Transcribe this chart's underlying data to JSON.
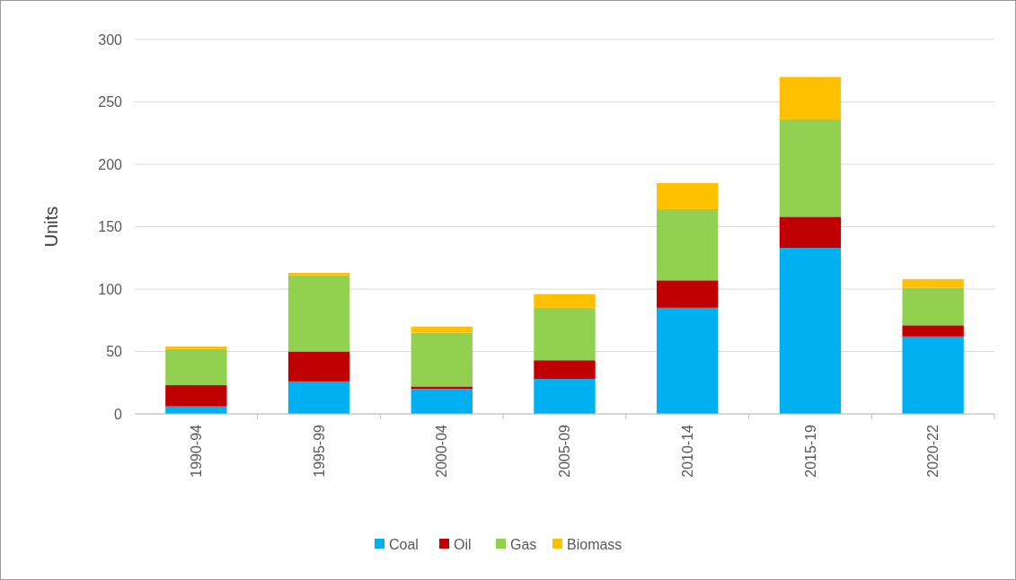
{
  "chart_data": {
    "type": "bar",
    "stacked": true,
    "ylabel": "Units",
    "categories": [
      "1990-94",
      "1995-99",
      "2000-04",
      "2005-09",
      "2010-14",
      "2015-19",
      "2020-22"
    ],
    "series": [
      {
        "name": "Coal",
        "color": "#00b0f0",
        "values": [
          6,
          26,
          20,
          28,
          85,
          133,
          62
        ]
      },
      {
        "name": "Oil",
        "color": "#c00000",
        "values": [
          17,
          24,
          2,
          15,
          22,
          25,
          9
        ]
      },
      {
        "name": "Gas",
        "color": "#92d050",
        "values": [
          29,
          61,
          43,
          42,
          57,
          78,
          30
        ]
      },
      {
        "name": "Biomass",
        "color": "#ffc000",
        "values": [
          2,
          2,
          5,
          11,
          21,
          34,
          7
        ]
      }
    ],
    "ylim": [
      0,
      300
    ],
    "yticks": [
      0,
      50,
      100,
      150,
      200,
      250,
      300
    ],
    "grid": "y",
    "legend": "bottom"
  }
}
